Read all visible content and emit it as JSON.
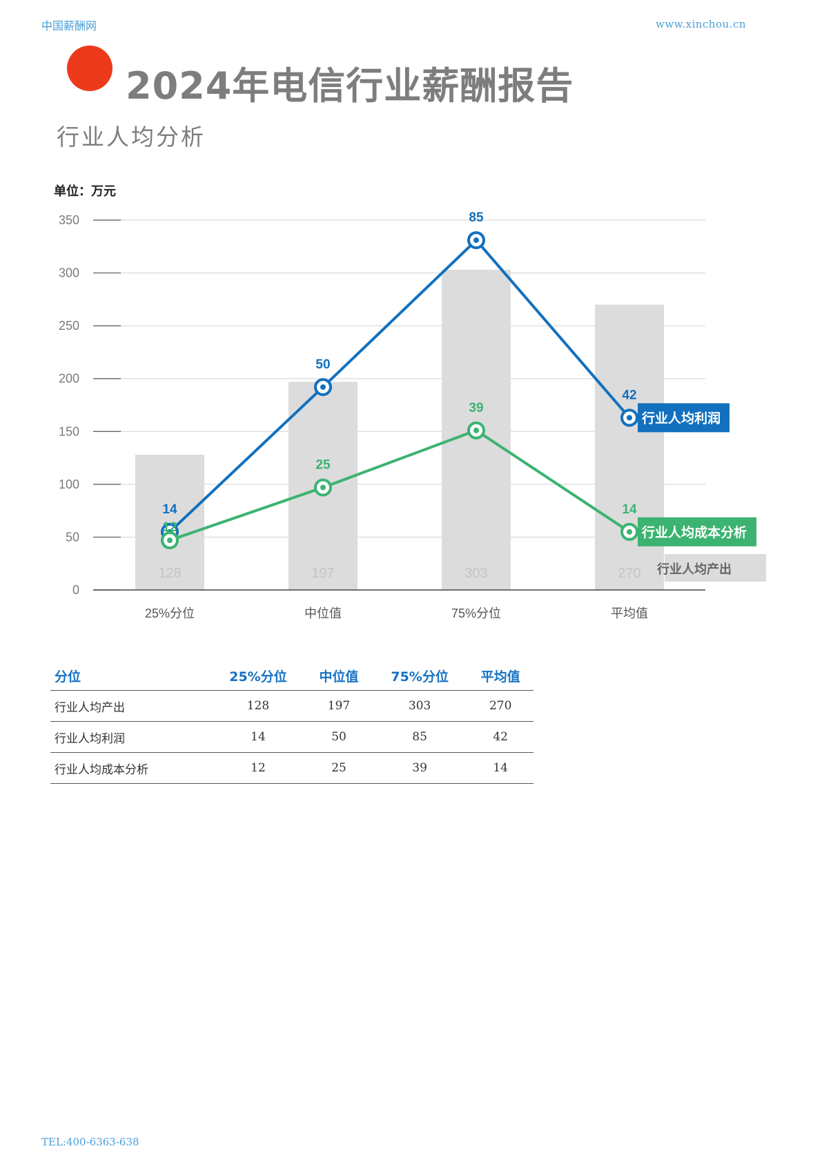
{
  "header": {
    "site": "中国薪酬网",
    "url": "www.xinchou.cn"
  },
  "title": "2024年电信行业薪酬报告",
  "subtitle": "行业人均分析",
  "unit_label": "单位：万元",
  "colors": {
    "bar": "#dcdcdc",
    "profit": "#1270be",
    "cost": "#3cb371",
    "accent": "#ee3a1c"
  },
  "chart_data": {
    "type": "bar+line",
    "categories": [
      "25%分位",
      "中位值",
      "75%分位",
      "平均值"
    ],
    "yticks": [
      0,
      50,
      100,
      150,
      200,
      250,
      300,
      350
    ],
    "ylim": [
      0,
      350
    ],
    "grid": true,
    "bars": {
      "name": "行业人均产出",
      "values": [
        128,
        197,
        303,
        270
      ]
    },
    "lines": [
      {
        "name": "行业人均利润",
        "values": [
          14,
          50,
          85,
          42
        ]
      },
      {
        "name": "行业人均成本分析",
        "values": [
          12,
          25,
          39,
          14
        ]
      }
    ]
  },
  "table": {
    "headers": [
      "分位",
      "25%分位",
      "中位值",
      "75%分位",
      "平均值"
    ],
    "rows": [
      [
        "行业人均产出",
        "128",
        "197",
        "303",
        "270"
      ],
      [
        "行业人均利润",
        "14",
        "50",
        "85",
        "42"
      ],
      [
        "行业人均成本分析",
        "12",
        "25",
        "39",
        "14"
      ]
    ]
  },
  "footer": {
    "tel": "TEL:400-6363-638"
  }
}
